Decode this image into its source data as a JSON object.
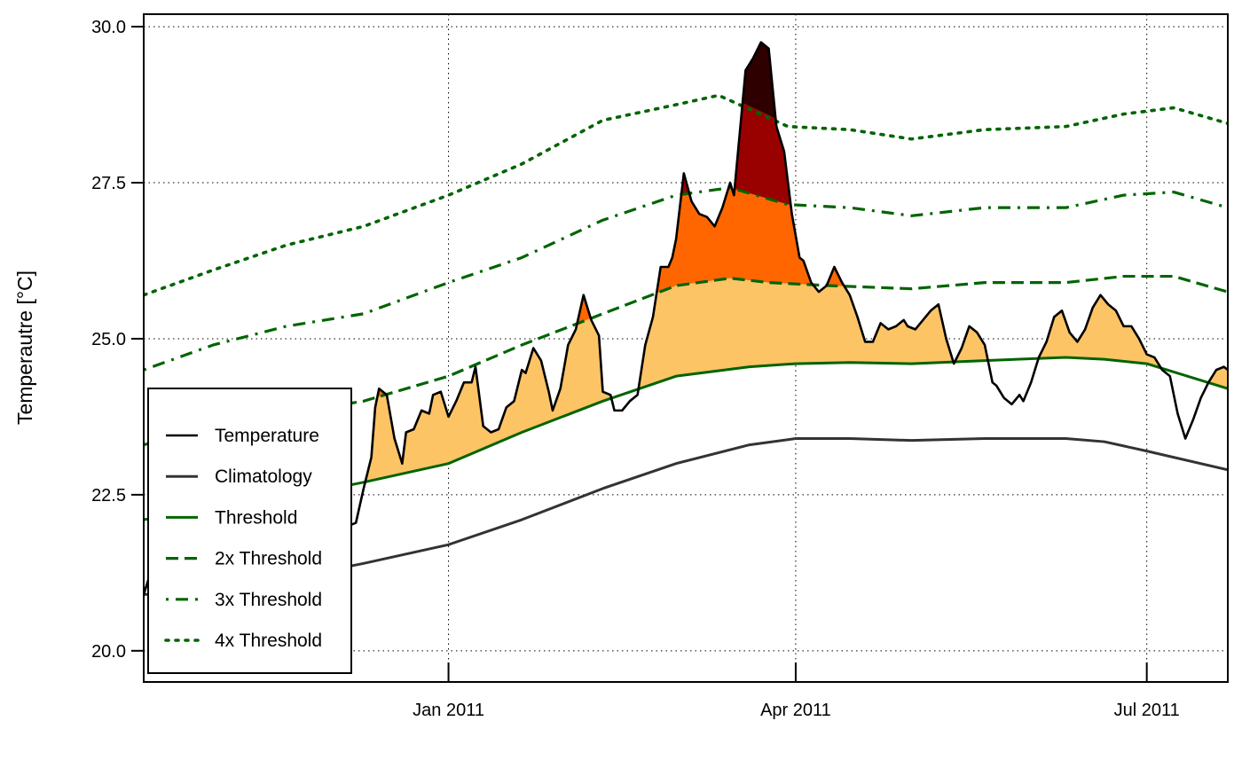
{
  "chart_data": {
    "type": "line",
    "title": "",
    "xlabel": "",
    "ylabel": "Temperautre [°C]",
    "ylim": [
      19.5,
      30.2
    ],
    "xlim": [
      "2010-10-14",
      "2011-07-22"
    ],
    "x_ticks": [
      {
        "date": "2011-01-01",
        "label": "Jan 2011"
      },
      {
        "date": "2011-04-01",
        "label": "Apr 2011"
      },
      {
        "date": "2011-07-01",
        "label": "Jul 2011"
      }
    ],
    "y_ticks": [
      {
        "value": 20.0,
        "label": "20.0"
      },
      {
        "value": 22.5,
        "label": "22.5"
      },
      {
        "value": 25.0,
        "label": "25.0"
      },
      {
        "value": 27.5,
        "label": "27.5"
      },
      {
        "value": 30.0,
        "label": "30.0"
      }
    ],
    "grid": true,
    "legend_position": "bottom-left",
    "category_fill_colors": {
      "moderate": "#FDC466",
      "strong": "#FF6600",
      "severe": "#990000",
      "extreme": "#2E0000"
    },
    "series": [
      {
        "name": "Temperature",
        "style": "solid",
        "color": "#000000",
        "points": [
          [
            "2010-10-14",
            20.9
          ],
          [
            "2010-10-15",
            21.1
          ],
          [
            "2010-10-16",
            21.3
          ],
          [
            "2010-10-18",
            21.6
          ],
          [
            "2010-10-20",
            21.9
          ],
          [
            "2010-10-22",
            22.3
          ],
          [
            "2010-10-24",
            22.7
          ],
          [
            "2010-10-26",
            22.5
          ],
          [
            "2010-10-28",
            23.0
          ],
          [
            "2010-10-30",
            23.6
          ],
          [
            "2010-11-01",
            23.2
          ],
          [
            "2010-11-03",
            22.8
          ],
          [
            "2010-11-05",
            23.1
          ],
          [
            "2010-11-07",
            22.6
          ],
          [
            "2010-11-09",
            22.4
          ],
          [
            "2010-11-11",
            22.8
          ],
          [
            "2010-11-13",
            23.2
          ],
          [
            "2010-11-15",
            22.7
          ],
          [
            "2010-11-17",
            22.3
          ],
          [
            "2010-11-19",
            22.5
          ],
          [
            "2010-12-04",
            22.3
          ],
          [
            "2010-12-06",
            22.0
          ],
          [
            "2010-12-08",
            22.05
          ],
          [
            "2010-12-10",
            22.6
          ],
          [
            "2010-12-12",
            23.1
          ],
          [
            "2010-12-13",
            23.9
          ],
          [
            "2010-12-14",
            24.2
          ],
          [
            "2010-12-16",
            24.1
          ],
          [
            "2010-12-18",
            23.4
          ],
          [
            "2010-12-20",
            23.0
          ],
          [
            "2010-12-21",
            23.5
          ],
          [
            "2010-12-23",
            23.55
          ],
          [
            "2010-12-25",
            23.85
          ],
          [
            "2010-12-27",
            23.8
          ],
          [
            "2010-12-28",
            24.1
          ],
          [
            "2010-12-30",
            24.15
          ],
          [
            "2011-01-01",
            23.75
          ],
          [
            "2011-01-03",
            24.0
          ],
          [
            "2011-01-05",
            24.3
          ],
          [
            "2011-01-07",
            24.3
          ],
          [
            "2011-01-08",
            24.55
          ],
          [
            "2011-01-10",
            23.6
          ],
          [
            "2011-01-12",
            23.5
          ],
          [
            "2011-01-14",
            23.55
          ],
          [
            "2011-01-16",
            23.9
          ],
          [
            "2011-01-18",
            24.0
          ],
          [
            "2011-01-20",
            24.5
          ],
          [
            "2011-01-21",
            24.45
          ],
          [
            "2011-01-23",
            24.85
          ],
          [
            "2011-01-25",
            24.65
          ],
          [
            "2011-01-27",
            24.15
          ],
          [
            "2011-01-28",
            23.85
          ],
          [
            "2011-01-30",
            24.2
          ],
          [
            "2011-02-01",
            24.9
          ],
          [
            "2011-02-03",
            25.15
          ],
          [
            "2011-02-05",
            25.7
          ],
          [
            "2011-02-07",
            25.3
          ],
          [
            "2011-02-09",
            25.05
          ],
          [
            "2011-02-10",
            24.15
          ],
          [
            "2011-02-12",
            24.1
          ],
          [
            "2011-02-13",
            23.85
          ],
          [
            "2011-02-15",
            23.85
          ],
          [
            "2011-02-17",
            24.0
          ],
          [
            "2011-02-19",
            24.1
          ],
          [
            "2011-02-21",
            24.9
          ],
          [
            "2011-02-23",
            25.35
          ],
          [
            "2011-02-25",
            26.15
          ],
          [
            "2011-02-27",
            26.15
          ],
          [
            "2011-02-28",
            26.3
          ],
          [
            "2011-03-01",
            26.6
          ],
          [
            "2011-03-03",
            27.65
          ],
          [
            "2011-03-05",
            27.2
          ],
          [
            "2011-03-07",
            27.0
          ],
          [
            "2011-03-09",
            26.95
          ],
          [
            "2011-03-11",
            26.8
          ],
          [
            "2011-03-13",
            27.1
          ],
          [
            "2011-03-15",
            27.5
          ],
          [
            "2011-03-16",
            27.3
          ],
          [
            "2011-03-19",
            29.3
          ],
          [
            "2011-03-21",
            29.5
          ],
          [
            "2011-03-23",
            29.75
          ],
          [
            "2011-03-25",
            29.65
          ],
          [
            "2011-03-27",
            28.4
          ],
          [
            "2011-03-29",
            28.0
          ],
          [
            "2011-03-31",
            27.0
          ],
          [
            "2011-04-02",
            26.3
          ],
          [
            "2011-04-03",
            26.25
          ],
          [
            "2011-04-05",
            25.9
          ],
          [
            "2011-04-07",
            25.75
          ],
          [
            "2011-04-09",
            25.85
          ],
          [
            "2011-04-11",
            26.15
          ],
          [
            "2011-04-13",
            25.9
          ],
          [
            "2011-04-15",
            25.7
          ],
          [
            "2011-04-17",
            25.35
          ],
          [
            "2011-04-19",
            24.95
          ],
          [
            "2011-04-21",
            24.95
          ],
          [
            "2011-04-23",
            25.25
          ],
          [
            "2011-04-25",
            25.15
          ],
          [
            "2011-04-27",
            25.2
          ],
          [
            "2011-04-29",
            25.3
          ],
          [
            "2011-04-30",
            25.2
          ],
          [
            "2011-05-02",
            25.15
          ],
          [
            "2011-05-04",
            25.3
          ],
          [
            "2011-05-06",
            25.45
          ],
          [
            "2011-05-08",
            25.55
          ],
          [
            "2011-05-10",
            25.0
          ],
          [
            "2011-05-12",
            24.6
          ],
          [
            "2011-05-14",
            24.85
          ],
          [
            "2011-05-16",
            25.2
          ],
          [
            "2011-05-18",
            25.1
          ],
          [
            "2011-05-20",
            24.9
          ],
          [
            "2011-05-22",
            24.3
          ],
          [
            "2011-05-23",
            24.25
          ],
          [
            "2011-05-25",
            24.05
          ],
          [
            "2011-05-27",
            23.95
          ],
          [
            "2011-05-29",
            24.1
          ],
          [
            "2011-05-30",
            24.0
          ],
          [
            "2011-06-01",
            24.3
          ],
          [
            "2011-06-03",
            24.7
          ],
          [
            "2011-06-05",
            24.95
          ],
          [
            "2011-06-07",
            25.35
          ],
          [
            "2011-06-09",
            25.45
          ],
          [
            "2011-06-11",
            25.1
          ],
          [
            "2011-06-13",
            24.95
          ],
          [
            "2011-06-15",
            25.15
          ],
          [
            "2011-06-17",
            25.5
          ],
          [
            "2011-06-19",
            25.7
          ],
          [
            "2011-06-21",
            25.55
          ],
          [
            "2011-06-23",
            25.45
          ],
          [
            "2011-06-25",
            25.2
          ],
          [
            "2011-06-27",
            25.2
          ],
          [
            "2011-06-29",
            25.0
          ],
          [
            "2011-07-01",
            24.75
          ],
          [
            "2011-07-03",
            24.7
          ],
          [
            "2011-07-05",
            24.5
          ],
          [
            "2011-07-07",
            24.4
          ],
          [
            "2011-07-09",
            23.8
          ],
          [
            "2011-07-11",
            23.4
          ],
          [
            "2011-07-13",
            23.7
          ],
          [
            "2011-07-15",
            24.05
          ],
          [
            "2011-07-17",
            24.3
          ],
          [
            "2011-07-19",
            24.5
          ],
          [
            "2011-07-21",
            24.55
          ],
          [
            "2011-07-22",
            24.5
          ]
        ]
      },
      {
        "name": "Climatology",
        "style": "solid",
        "color": "#333333",
        "points": [
          [
            "2010-10-14",
            20.9
          ],
          [
            "2010-11-01",
            21.0
          ],
          [
            "2010-11-20",
            21.15
          ],
          [
            "2010-12-10",
            21.4
          ],
          [
            "2011-01-01",
            21.7
          ],
          [
            "2011-01-20",
            22.1
          ],
          [
            "2011-02-10",
            22.6
          ],
          [
            "2011-03-01",
            23.0
          ],
          [
            "2011-03-20",
            23.3
          ],
          [
            "2011-04-01",
            23.4
          ],
          [
            "2011-04-15",
            23.4
          ],
          [
            "2011-05-01",
            23.37
          ],
          [
            "2011-05-20",
            23.4
          ],
          [
            "2011-06-10",
            23.4
          ],
          [
            "2011-06-20",
            23.35
          ],
          [
            "2011-07-01",
            23.2
          ],
          [
            "2011-07-22",
            22.9
          ]
        ]
      },
      {
        "name": "Threshold",
        "style": "solid",
        "color": "#006400",
        "points": [
          [
            "2010-10-14",
            22.1
          ],
          [
            "2010-11-01",
            22.3
          ],
          [
            "2010-11-20",
            22.45
          ],
          [
            "2010-12-10",
            22.7
          ],
          [
            "2011-01-01",
            23.0
          ],
          [
            "2011-01-20",
            23.5
          ],
          [
            "2011-02-10",
            24.0
          ],
          [
            "2011-03-01",
            24.4
          ],
          [
            "2011-03-20",
            24.55
          ],
          [
            "2011-04-01",
            24.6
          ],
          [
            "2011-04-15",
            24.62
          ],
          [
            "2011-05-01",
            24.6
          ],
          [
            "2011-05-20",
            24.65
          ],
          [
            "2011-06-10",
            24.7
          ],
          [
            "2011-06-20",
            24.67
          ],
          [
            "2011-07-01",
            24.6
          ],
          [
            "2011-07-22",
            24.2
          ]
        ]
      },
      {
        "name": "2x Threshold",
        "style": "dashed",
        "color": "#006400",
        "points": [
          [
            "2010-10-14",
            23.3
          ],
          [
            "2010-11-01",
            23.6
          ],
          [
            "2010-11-20",
            23.8
          ],
          [
            "2010-12-10",
            24.0
          ],
          [
            "2011-01-01",
            24.4
          ],
          [
            "2011-01-20",
            24.9
          ],
          [
            "2011-02-10",
            25.4
          ],
          [
            "2011-03-01",
            25.85
          ],
          [
            "2011-03-15",
            25.97
          ],
          [
            "2011-03-25",
            25.9
          ],
          [
            "2011-04-10",
            25.85
          ],
          [
            "2011-05-01",
            25.8
          ],
          [
            "2011-05-20",
            25.9
          ],
          [
            "2011-06-10",
            25.9
          ],
          [
            "2011-06-25",
            26.0
          ],
          [
            "2011-07-08",
            26.0
          ],
          [
            "2011-07-22",
            25.75
          ]
        ]
      },
      {
        "name": "3x Threshold",
        "style": "dot-dash",
        "color": "#006400",
        "points": [
          [
            "2010-10-14",
            24.5
          ],
          [
            "2010-11-01",
            24.9
          ],
          [
            "2010-11-20",
            25.2
          ],
          [
            "2010-12-10",
            25.4
          ],
          [
            "2011-01-01",
            25.9
          ],
          [
            "2011-01-20",
            26.3
          ],
          [
            "2011-02-10",
            26.9
          ],
          [
            "2011-03-01",
            27.3
          ],
          [
            "2011-03-15",
            27.42
          ],
          [
            "2011-03-30",
            27.15
          ],
          [
            "2011-04-15",
            27.1
          ],
          [
            "2011-05-01",
            26.97
          ],
          [
            "2011-05-20",
            27.1
          ],
          [
            "2011-06-10",
            27.1
          ],
          [
            "2011-06-25",
            27.3
          ],
          [
            "2011-07-08",
            27.35
          ],
          [
            "2011-07-22",
            27.1
          ]
        ]
      },
      {
        "name": "4x Threshold",
        "style": "dotted",
        "color": "#006400",
        "points": [
          [
            "2010-10-14",
            25.7
          ],
          [
            "2010-11-01",
            26.1
          ],
          [
            "2010-11-20",
            26.5
          ],
          [
            "2010-12-10",
            26.8
          ],
          [
            "2011-01-01",
            27.3
          ],
          [
            "2011-01-20",
            27.8
          ],
          [
            "2011-02-10",
            28.5
          ],
          [
            "2011-03-01",
            28.75
          ],
          [
            "2011-03-12",
            28.9
          ],
          [
            "2011-03-30",
            28.4
          ],
          [
            "2011-04-15",
            28.35
          ],
          [
            "2011-05-01",
            28.2
          ],
          [
            "2011-05-20",
            28.35
          ],
          [
            "2011-06-10",
            28.4
          ],
          [
            "2011-06-25",
            28.6
          ],
          [
            "2011-07-08",
            28.7
          ],
          [
            "2011-07-22",
            28.45
          ]
        ]
      }
    ]
  }
}
